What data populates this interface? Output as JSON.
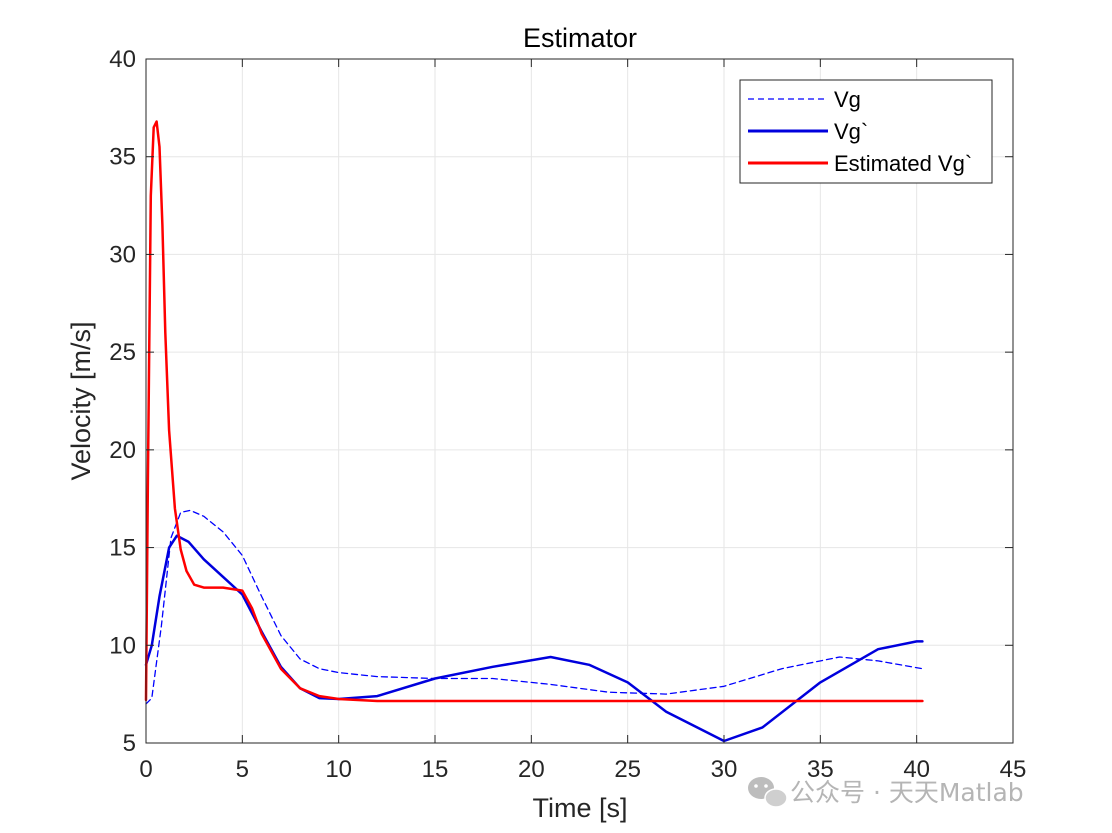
{
  "chart_data": {
    "type": "line",
    "title": "Estimator",
    "xlabel": "Time [s]",
    "ylabel": "Velocity [m/s]",
    "xlim": [
      0,
      45
    ],
    "ylim": [
      5,
      40
    ],
    "xticks": [
      0,
      5,
      10,
      15,
      20,
      25,
      30,
      35,
      40,
      45
    ],
    "yticks": [
      5,
      10,
      15,
      20,
      25,
      30,
      35,
      40
    ],
    "grid": true,
    "legend_position": "top-right",
    "series": [
      {
        "name": "Vg",
        "color": "#0000ff",
        "style": "dashed",
        "x": [
          0,
          0.3,
          0.8,
          1.3,
          1.8,
          2.3,
          3,
          4,
          5,
          6,
          7,
          8,
          9,
          10,
          12,
          15,
          18,
          21,
          24,
          27,
          30,
          33,
          36,
          38,
          40.3
        ],
        "y": [
          7.0,
          7.3,
          11.0,
          15.5,
          16.8,
          16.9,
          16.6,
          15.8,
          14.6,
          12.5,
          10.5,
          9.3,
          8.8,
          8.6,
          8.4,
          8.3,
          8.3,
          8.0,
          7.6,
          7.5,
          7.9,
          8.8,
          9.4,
          9.2,
          8.8
        ]
      },
      {
        "name": "Vg`",
        "color": "#0000dd",
        "style": "solid",
        "x": [
          0,
          0.3,
          0.7,
          1.2,
          1.6,
          2.2,
          3,
          4,
          5,
          6,
          7,
          8,
          9,
          10,
          12,
          15,
          18,
          21,
          23,
          25,
          27,
          30,
          32,
          35,
          38,
          40,
          40.3
        ],
        "y": [
          9.0,
          10.0,
          12.5,
          15.0,
          15.6,
          15.3,
          14.4,
          13.5,
          12.6,
          10.7,
          8.9,
          7.8,
          7.3,
          7.25,
          7.4,
          8.3,
          8.9,
          9.4,
          9.0,
          8.1,
          6.6,
          5.1,
          5.8,
          8.1,
          9.8,
          10.2,
          10.2
        ]
      },
      {
        "name": "Estimated Vg`",
        "color": "#ff0000",
        "style": "solid",
        "x": [
          0,
          0.1,
          0.25,
          0.4,
          0.55,
          0.7,
          0.85,
          1.0,
          1.2,
          1.5,
          1.8,
          2.1,
          2.5,
          3,
          4,
          5,
          5.5,
          6,
          7,
          8,
          9,
          10,
          11,
          12,
          15,
          20,
          25,
          30,
          35,
          40.3
        ],
        "y": [
          7.2,
          18.5,
          33.0,
          36.5,
          36.8,
          35.5,
          31.5,
          26.0,
          21.0,
          17.0,
          14.9,
          13.8,
          13.1,
          12.95,
          12.95,
          12.8,
          11.9,
          10.6,
          8.8,
          7.8,
          7.4,
          7.25,
          7.2,
          7.15,
          7.15,
          7.15,
          7.15,
          7.15,
          7.15,
          7.15
        ]
      }
    ]
  },
  "watermark": {
    "text": "公众号 · 天天Matlab",
    "icon": "wechat-icon"
  }
}
